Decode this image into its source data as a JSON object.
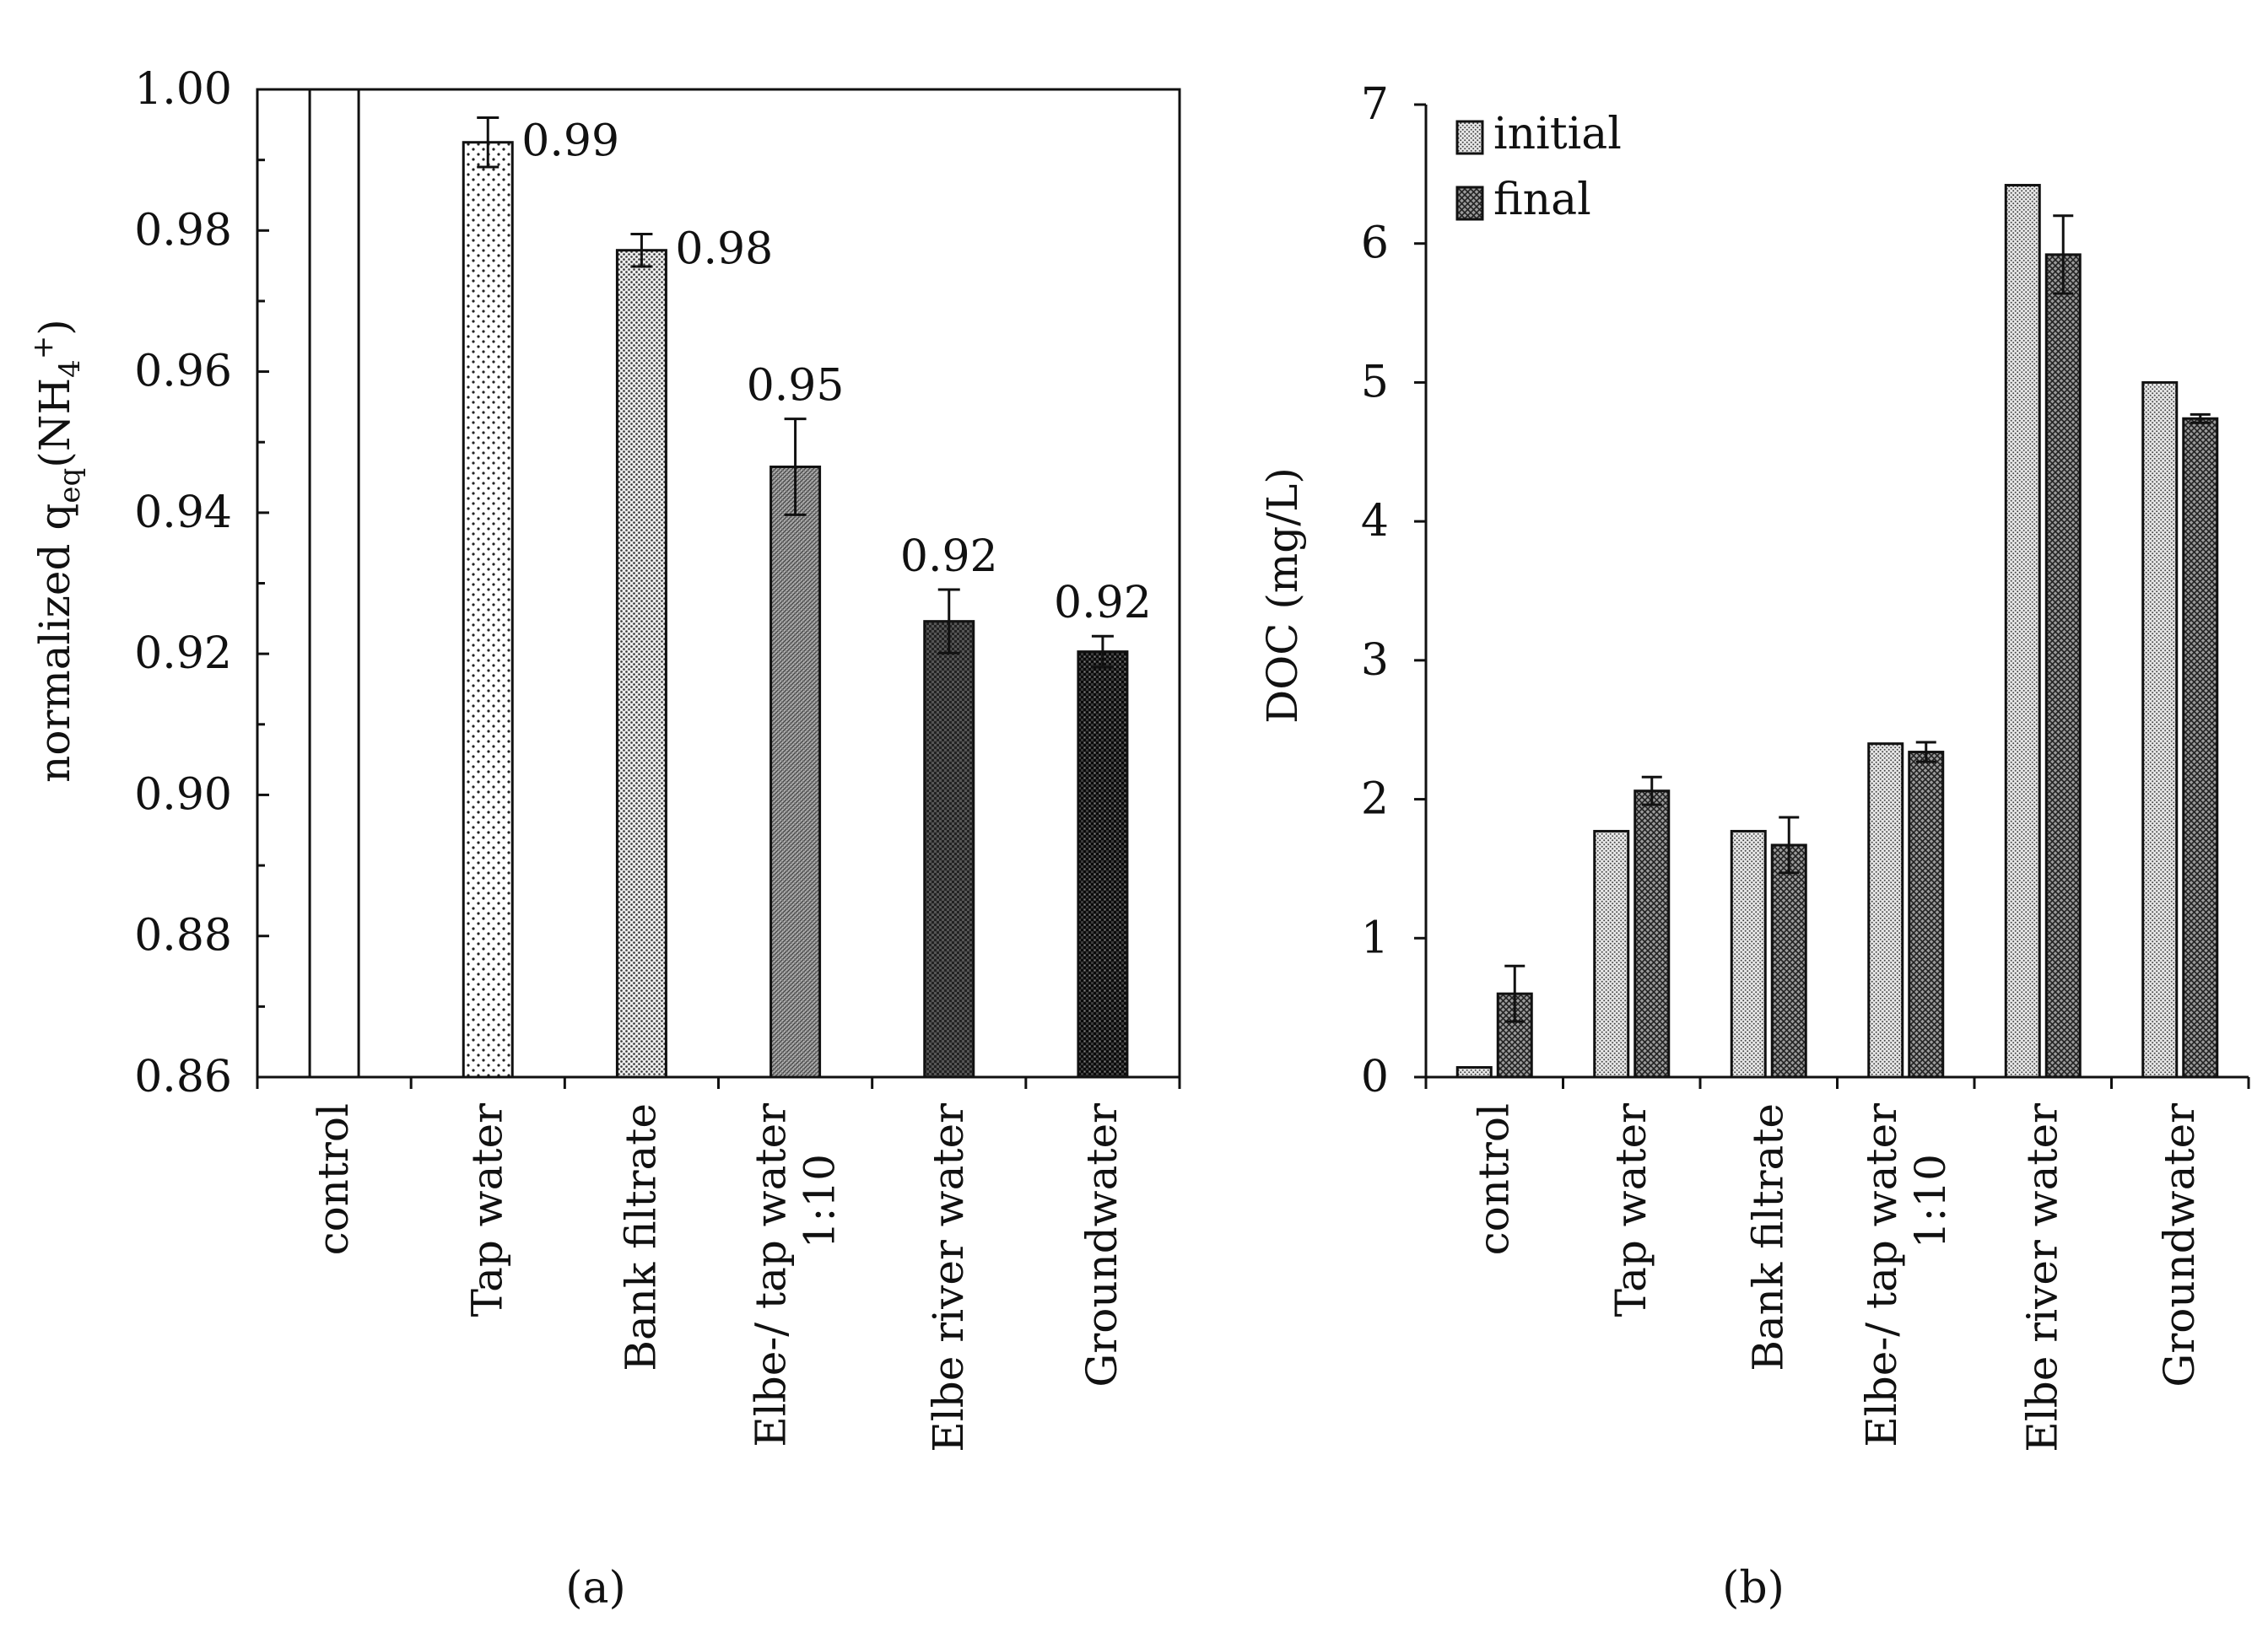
{
  "colors": {
    "axis": "#111111",
    "bar_stroke": "#111111",
    "background": "#ffffff"
  },
  "chart_data": [
    {
      "id": "a",
      "type": "bar",
      "panel_label": "(a)",
      "ylabel": {
        "prefix": "normalized q",
        "sub1": "eq",
        "mid": "(NH",
        "sub2": "4",
        "sup": "+",
        "suffix": ")"
      },
      "ylim": [
        0.86,
        1.0
      ],
      "yticks": [
        "0.86",
        "0.88",
        "0.90",
        "0.92",
        "0.94",
        "0.96",
        "0.98",
        "1.00"
      ],
      "categories": [
        [
          "control"
        ],
        [
          "Tap water"
        ],
        [
          "Bank filtrate"
        ],
        [
          "Elbe-/ tap water",
          "1:10"
        ],
        [
          "Elbe river water"
        ],
        [
          "Groundwater"
        ]
      ],
      "values": [
        1.0,
        0.9925,
        0.9772,
        0.9465,
        0.9246,
        0.9203
      ],
      "errors": [
        0,
        0.0035,
        0.0023,
        0.0068,
        0.0045,
        0.0022
      ],
      "data_labels": [
        "",
        "0.99",
        "0.98",
        "0.95",
        "0.92",
        "0.92"
      ],
      "patterns": [
        "none",
        "dots-sparse",
        "dots-dense",
        "hatch-fine",
        "check-dark",
        "check-darker"
      ]
    },
    {
      "id": "b",
      "type": "bar",
      "panel_label": "(b)",
      "ylabel": "DOC (mg/L)",
      "ylim": [
        0,
        7
      ],
      "yticks": [
        "0",
        "1",
        "2",
        "3",
        "4",
        "5",
        "6",
        "7"
      ],
      "categories": [
        [
          "control"
        ],
        [
          "Tap water"
        ],
        [
          "Bank filtrate"
        ],
        [
          "Elbe-/ tap water",
          "1:10"
        ],
        [
          "Elbe river water"
        ],
        [
          "Groundwater"
        ]
      ],
      "legend": {
        "position": "top-left",
        "entries": [
          "initial",
          "final"
        ]
      },
      "series": [
        {
          "name": "initial",
          "values": [
            0.07,
            1.77,
            1.77,
            2.4,
            6.42,
            5.0
          ],
          "errors": [
            0,
            0,
            0,
            0,
            0,
            0
          ]
        },
        {
          "name": "final",
          "values": [
            0.6,
            2.06,
            1.67,
            2.34,
            5.92,
            4.74
          ],
          "errors": [
            0.2,
            0.1,
            0.2,
            0.07,
            0.28,
            0.03
          ]
        }
      ]
    }
  ]
}
